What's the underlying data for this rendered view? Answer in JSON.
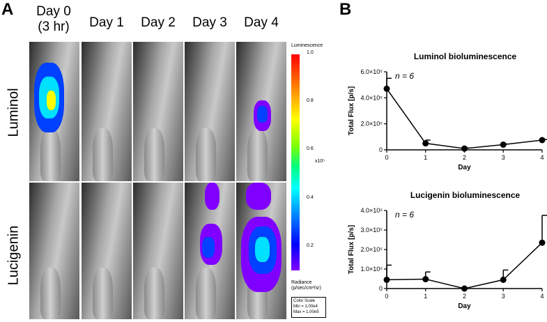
{
  "panel_a": {
    "letter": "A",
    "days": [
      "Day 0\n(3 hr)",
      "Day 1",
      "Day 2",
      "Day 3",
      "Day 4"
    ],
    "day0_line1": "Day 0",
    "day0_line2": "(3 hr)",
    "rows": [
      "Luminol",
      "Lucigenin"
    ],
    "colorbar": {
      "title": "Luminescence",
      "ticks": [
        "1.0",
        "0.8",
        "0.6",
        "0.4",
        "0.2"
      ],
      "exponent": "x10⁵",
      "units_line1": "Radiance",
      "units_line2": "(p/sec/cm²/sr)",
      "scale_title": "Color Scale",
      "scale_min": "Min = 1.00e4",
      "scale_max": "Max = 1.00e5"
    },
    "signal_colors": {
      "high": "#ffff00",
      "mid": "#00e0ff",
      "low": "#0040ff",
      "edge": "#8000ff"
    }
  },
  "panel_b": {
    "letter": "B"
  },
  "chart_data": [
    {
      "type": "line",
      "title": "Luminol bioluminescence",
      "xlabel": "Day",
      "ylabel": "Total Flux [p/s]",
      "annotation": "n = 6",
      "x": [
        0,
        1,
        2,
        3,
        4
      ],
      "x_ticks": [
        "0",
        "1",
        "2",
        "3",
        "4"
      ],
      "y": [
        470000,
        50000,
        10000,
        40000,
        75000
      ],
      "error_upper": [
        550000,
        75000,
        15000,
        45000,
        80000
      ],
      "ylim": [
        0,
        600000
      ],
      "y_ticks": [
        "0",
        "2.0×10⁵",
        "4.0×10⁵",
        "6.0×10⁵"
      ],
      "y_tick_values": [
        0,
        200000,
        400000,
        600000
      ]
    },
    {
      "type": "line",
      "title": "Lucigenin bioluminescence",
      "xlabel": "Day",
      "ylabel": "Total Flux [p/s]",
      "annotation": "n = 6",
      "x": [
        0,
        1,
        2,
        3,
        4
      ],
      "x_ticks": [
        "0",
        "1",
        "2",
        "3",
        "4"
      ],
      "y": [
        45000,
        48000,
        0,
        45000,
        235000
      ],
      "error_upper": [
        120000,
        85000,
        0,
        95000,
        375000
      ],
      "ylim": [
        0,
        400000
      ],
      "y_ticks": [
        "0",
        "1.0×10⁵",
        "2.0×10⁵",
        "3.0×10⁵",
        "4.0×10⁵"
      ],
      "y_tick_values": [
        0,
        100000,
        200000,
        300000,
        400000
      ]
    }
  ]
}
